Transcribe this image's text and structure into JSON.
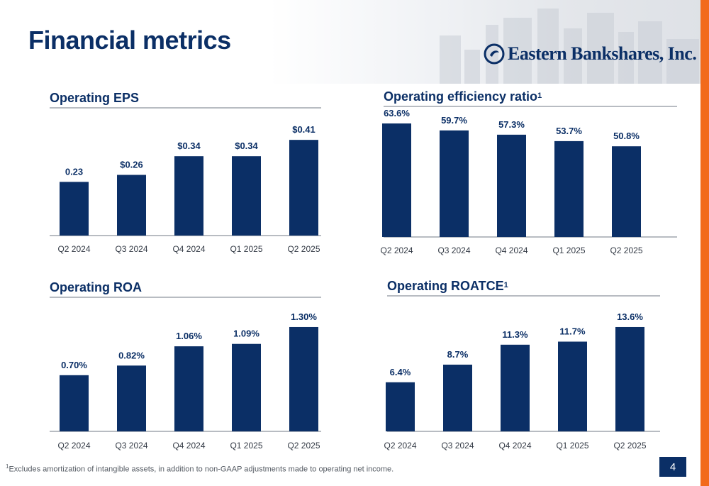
{
  "header": {
    "title": "Financial metrics",
    "logo_text": "Eastern Bankshares, Inc."
  },
  "colors": {
    "bar": "#0b2f66",
    "accent": "#f26a1b",
    "rule": "#b8bcc2"
  },
  "chart_data": [
    {
      "type": "bar",
      "title": "Operating EPS",
      "title_sup": "",
      "categories": [
        "Q2 2024",
        "Q3 2024",
        "Q4 2024",
        "Q1 2025",
        "Q2 2025"
      ],
      "values": [
        0.23,
        0.26,
        0.34,
        0.34,
        0.41
      ],
      "labels": [
        "0.23",
        "$0.26",
        "$0.34",
        "$0.34",
        "$0.41"
      ],
      "ylim": [
        0,
        0.45
      ]
    },
    {
      "type": "bar",
      "title": "Operating efficiency ratio",
      "title_sup": "1",
      "categories": [
        "Q2 2024",
        "Q3 2024",
        "Q4 2024",
        "Q1 2025",
        "Q2 2025"
      ],
      "values": [
        63.6,
        59.7,
        57.3,
        53.7,
        50.8
      ],
      "labels": [
        "63.6%",
        "59.7%",
        "57.3%",
        "53.7%",
        "50.8%"
      ],
      "ylim": [
        0,
        63.6
      ]
    },
    {
      "type": "bar",
      "title": "Operating ROA",
      "title_sup": "",
      "categories": [
        "Q2 2024",
        "Q3 2024",
        "Q4 2024",
        "Q1 2025",
        "Q2 2025"
      ],
      "values": [
        0.7,
        0.82,
        1.06,
        1.09,
        1.3
      ],
      "labels": [
        "0.70%",
        "0.82%",
        "1.06%",
        "1.09%",
        "1.30%"
      ],
      "ylim": [
        0,
        1.45
      ]
    },
    {
      "type": "bar",
      "title": "Operating ROATCE",
      "title_sup": "1",
      "categories": [
        "Q2 2024",
        "Q3 2024",
        "Q4 2024",
        "Q1 2025",
        "Q2 2025"
      ],
      "values": [
        6.4,
        8.7,
        11.3,
        11.7,
        13.6
      ],
      "labels": [
        "6.4%",
        "8.7%",
        "11.3%",
        "11.7%",
        "13.6%"
      ],
      "ylim": [
        0,
        14.8
      ]
    }
  ],
  "footnote": {
    "marker": "1",
    "text": "Excludes amortization of intangible assets, in addition to non-GAAP adjustments made to operating net income."
  },
  "page_number": "4"
}
